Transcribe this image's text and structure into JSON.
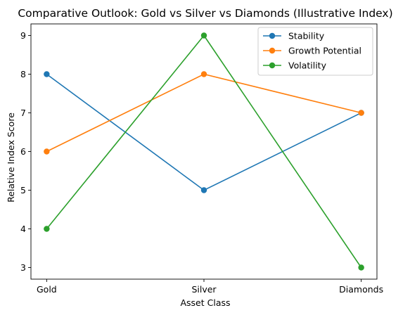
{
  "chart_data": {
    "type": "line",
    "title": "Comparative Outlook: Gold vs Silver vs Diamonds (Illustrative Index)",
    "xlabel": "Asset Class",
    "ylabel": "Relative Index Score",
    "categories": [
      "Gold",
      "Silver",
      "Diamonds"
    ],
    "yticks": [
      3,
      4,
      5,
      6,
      7,
      8,
      9
    ],
    "ylim": [
      2.7,
      9.3
    ],
    "grid": false,
    "legend_position": "top-right",
    "series": [
      {
        "name": "Stability",
        "color": "#1f77b4",
        "values": [
          8,
          5,
          7
        ]
      },
      {
        "name": "Growth Potential",
        "color": "#ff7f0e",
        "values": [
          6,
          8,
          7
        ]
      },
      {
        "name": "Volatility",
        "color": "#2ca02c",
        "values": [
          4,
          9,
          3
        ]
      }
    ]
  }
}
